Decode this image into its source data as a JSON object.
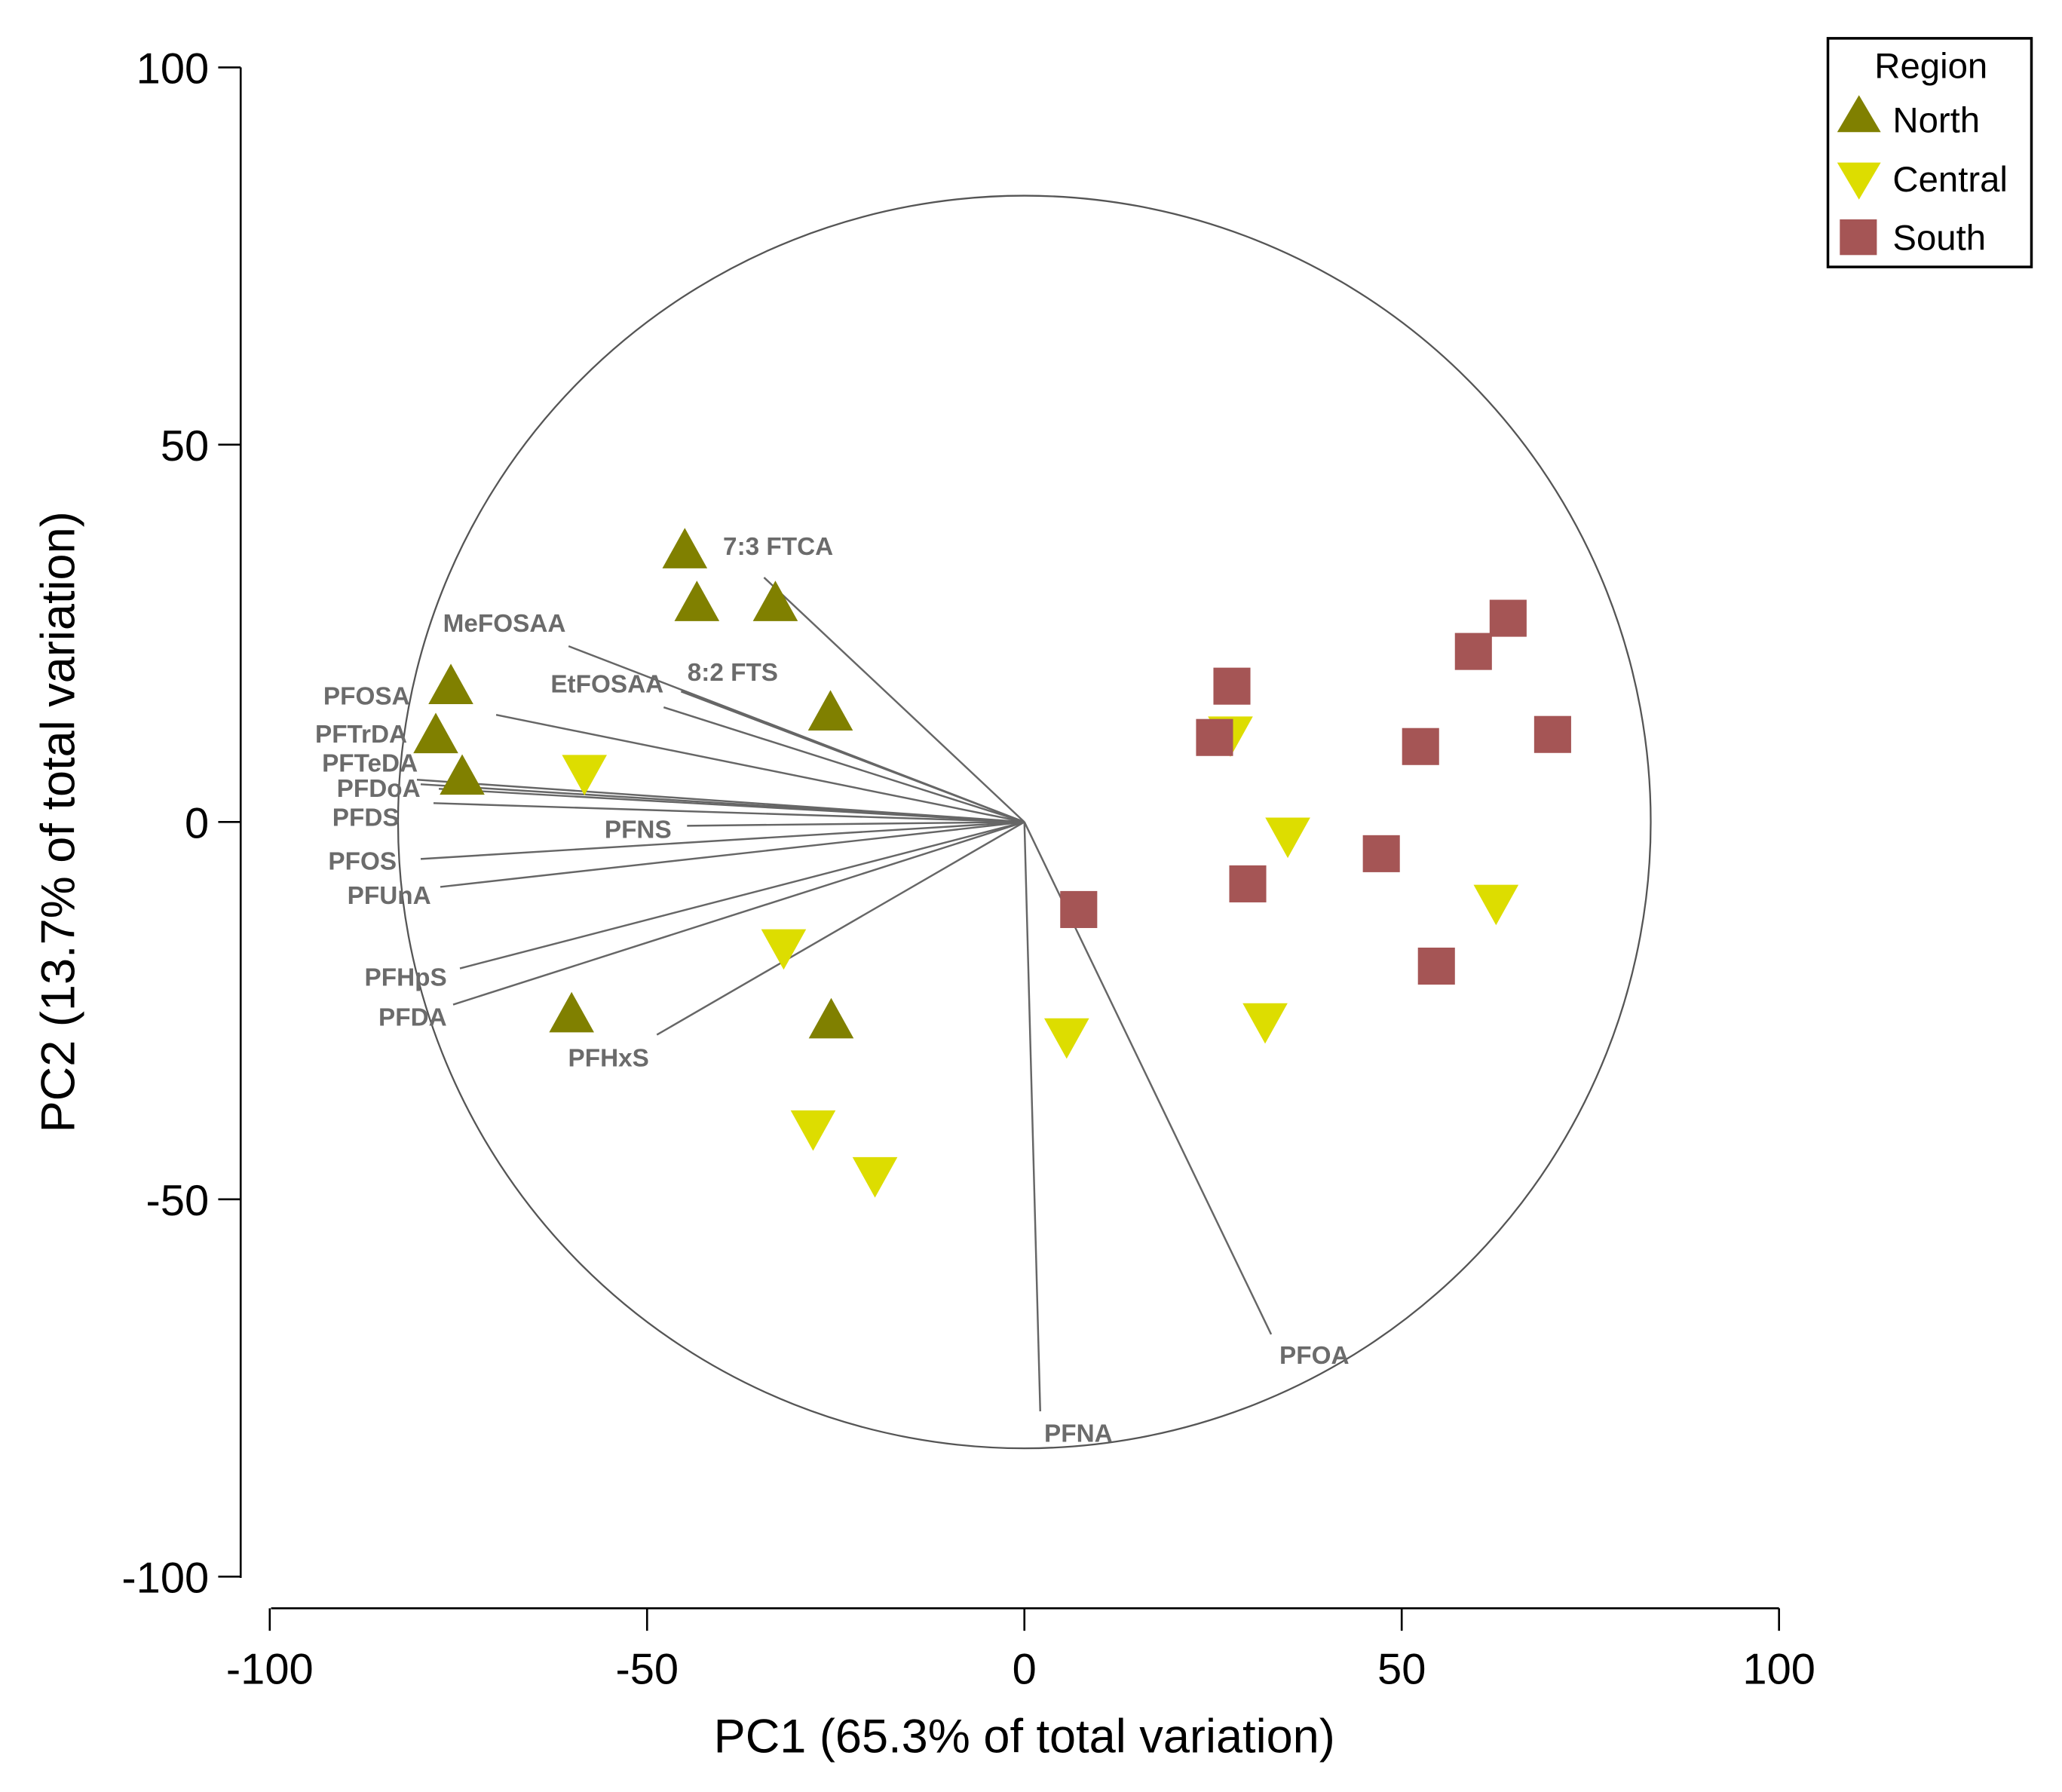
{
  "chart_data": {
    "type": "scatter",
    "subtype": "PCA biplot",
    "title": "",
    "xlabel": "PC1 (65.3% of total variation)",
    "ylabel": "PC2 (13.7% of total variation)",
    "xlim": [
      -100,
      100
    ],
    "ylim": [
      -100,
      100
    ],
    "xticks": [
      -100,
      -50,
      0,
      50,
      100
    ],
    "yticks": [
      -100,
      -50,
      0,
      50,
      100
    ],
    "grid": false,
    "legend": {
      "title": "Region",
      "placement": "top-right"
    },
    "correlation_circle_radius": 83,
    "series": [
      {
        "name": "North",
        "marker": "triangle-up",
        "color": "#808000",
        "points": [
          [
            -45,
            36
          ],
          [
            -43.4,
            29
          ],
          [
            -33,
            29
          ],
          [
            -76,
            18
          ],
          [
            -78,
            11.5
          ],
          [
            -74.5,
            6
          ],
          [
            -25.7,
            14.5
          ],
          [
            -60,
            -25.5
          ],
          [
            -25.6,
            -26.3
          ]
        ]
      },
      {
        "name": "Central",
        "marker": "triangle-down",
        "color": "#dddd00",
        "points": [
          [
            -58.3,
            6.5
          ],
          [
            27.3,
            11.6
          ],
          [
            34.9,
            -1.8
          ],
          [
            62.5,
            -10.7
          ],
          [
            -31.9,
            -16.6
          ],
          [
            5.6,
            -28.4
          ],
          [
            31.9,
            -26.4
          ],
          [
            -28,
            -40.6
          ],
          [
            -19.8,
            -46.8
          ]
        ]
      },
      {
        "name": "South",
        "marker": "square",
        "color": "#a55555",
        "points": [
          [
            27.5,
            18
          ],
          [
            25.2,
            11.2
          ],
          [
            64.1,
            27
          ],
          [
            59.5,
            22.6
          ],
          [
            70,
            11.6
          ],
          [
            52.5,
            10
          ],
          [
            47.3,
            -4.2
          ],
          [
            29.6,
            -8.2
          ],
          [
            7.2,
            -11.6
          ],
          [
            54.6,
            -19.1
          ]
        ]
      }
    ],
    "vectors": [
      {
        "label": "7:3 FTCA",
        "x": -34.5,
        "y": 32.4
      },
      {
        "label": "MeFOSAA",
        "x": -60.4,
        "y": 23.3
      },
      {
        "label": "8:2 FTS",
        "x": -45.5,
        "y": 17.3
      },
      {
        "label": "EtFOSAA",
        "x": -47.8,
        "y": 15.2
      },
      {
        "label": "PFOSA",
        "x": -70,
        "y": 14.2
      },
      {
        "label": "PFTrDA",
        "x": -80.5,
        "y": 5.6
      },
      {
        "label": "PFTeDA",
        "x": -80,
        "y": 5.0
      },
      {
        "label": "PFDoA",
        "x": -77.6,
        "y": 4.4
      },
      {
        "label": "PFDS",
        "x": -78.3,
        "y": 2.5
      },
      {
        "label": "PFNS",
        "x": -44.7,
        "y": -0.5
      },
      {
        "label": "PFOS",
        "x": -80,
        "y": -4.9
      },
      {
        "label": "PFUnA",
        "x": -77.4,
        "y": -8.6
      },
      {
        "label": "PFHpS",
        "x": -74.8,
        "y": -19.4
      },
      {
        "label": "PFDA",
        "x": -75.7,
        "y": -24.2
      },
      {
        "label": "PFHxS",
        "x": -48.7,
        "y": -28.2
      },
      {
        "label": "PFNA",
        "x": 2.1,
        "y": -78.1
      },
      {
        "label": "PFOA",
        "x": 32.7,
        "y": -67.9
      }
    ]
  }
}
